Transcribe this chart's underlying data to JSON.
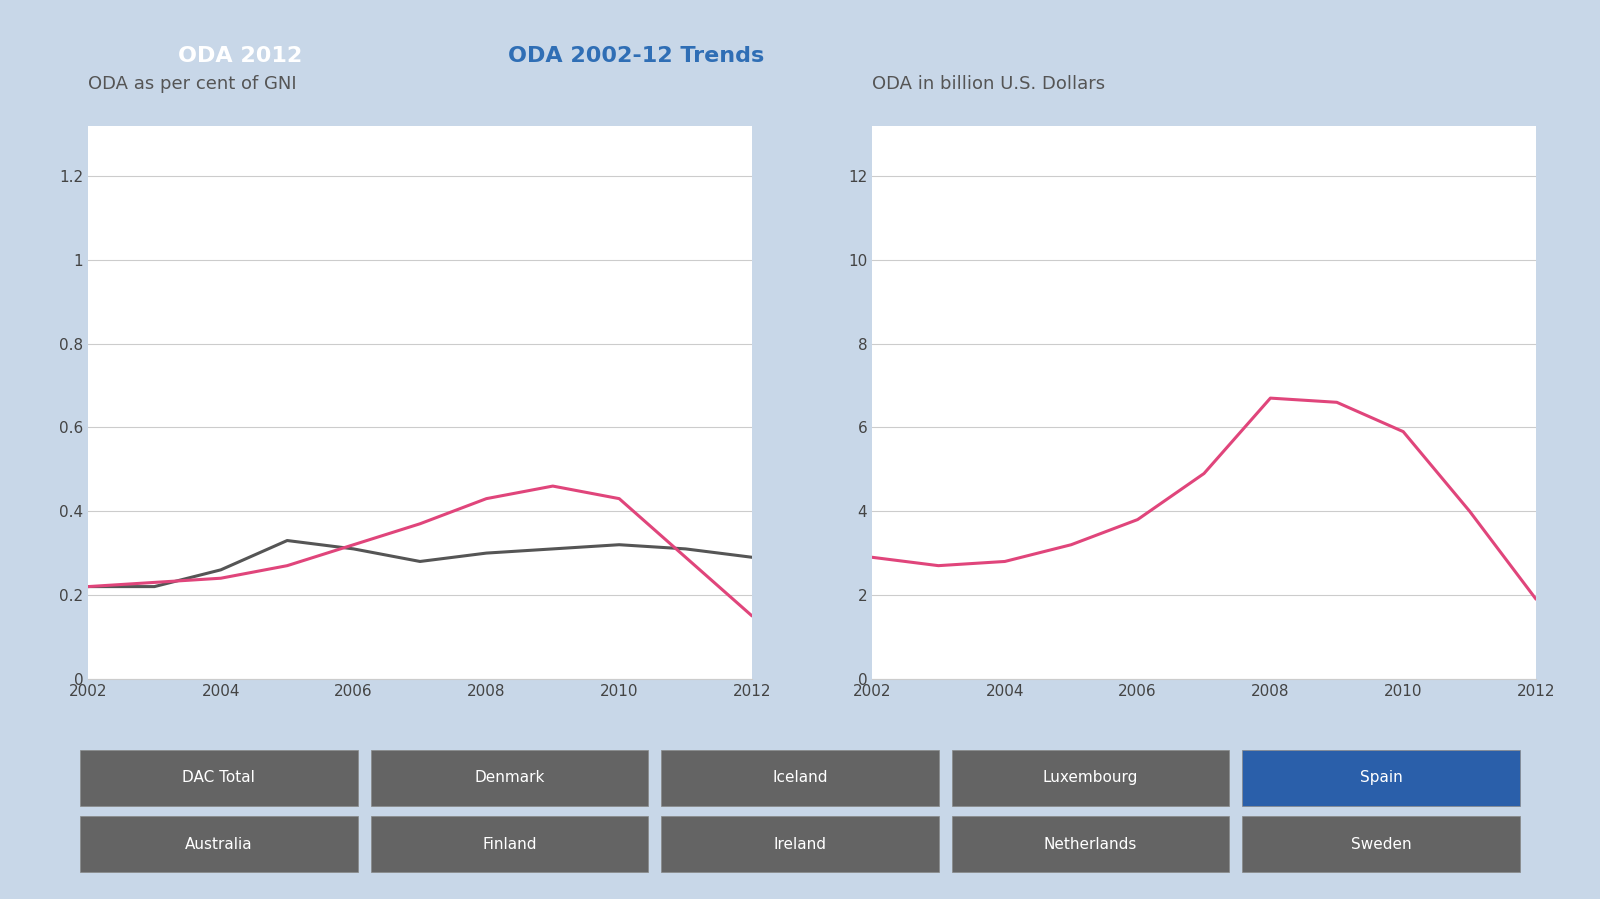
{
  "tab1_label": "ODA 2012",
  "tab2_label": "ODA 2002-12 Trends",
  "tab1_color": "#3a90d0",
  "tab2_color": "#f5f8fc",
  "tab1_text_color": "#ffffff",
  "tab2_text_color": "#2f6eb5",
  "background_color": "#c8d7e8",
  "chart_bg_color": "#f5f8fc",
  "plot_bg_color": "#ffffff",
  "years": [
    2002,
    2003,
    2004,
    2005,
    2006,
    2007,
    2008,
    2009,
    2010,
    2011,
    2012
  ],
  "left_title": "ODA as per cent of GNI",
  "left_ytick_labels": [
    "0",
    "0.2",
    "0.4",
    "0.6",
    "0.8",
    "1",
    "1.2"
  ],
  "left_yticks": [
    0,
    0.2,
    0.4,
    0.6,
    0.8,
    1.0,
    1.2
  ],
  "left_ylim": [
    0,
    1.32
  ],
  "left_spain": [
    0.22,
    0.23,
    0.24,
    0.27,
    0.32,
    0.37,
    0.43,
    0.46,
    0.43,
    0.29,
    0.15
  ],
  "left_dac": [
    0.22,
    0.22,
    0.26,
    0.33,
    0.31,
    0.28,
    0.3,
    0.31,
    0.32,
    0.31,
    0.29
  ],
  "right_title": "ODA in billion U.S. Dollars",
  "right_ytick_labels": [
    "0",
    "2",
    "4",
    "6",
    "8",
    "10",
    "12"
  ],
  "right_yticks": [
    0,
    2,
    4,
    6,
    8,
    10,
    12
  ],
  "right_ylim": [
    0,
    13.2
  ],
  "right_spain": [
    2.9,
    2.7,
    2.8,
    3.2,
    3.8,
    4.9,
    6.7,
    6.6,
    5.9,
    4.0,
    1.9
  ],
  "spain_color": "#e0457b",
  "dac_color": "#555555",
  "line_width": 2.2,
  "grid_color": "#cccccc",
  "xtick_years": [
    2002,
    2004,
    2006,
    2008,
    2010,
    2012
  ],
  "legend_items": [
    "DAC Total",
    "Denmark",
    "Iceland",
    "Luxembourg",
    "Spain",
    "Australia",
    "Finland",
    "Ireland",
    "Netherlands",
    "Sweden"
  ],
  "legend_highlight": "Spain",
  "legend_button_color": "#646464",
  "legend_highlight_color": "#2a5faa",
  "legend_text_color": "#ffffff",
  "legend_rows": 2,
  "legend_cols": 5,
  "tick_fontsize": 11,
  "title_fontsize": 13,
  "tab_fontsize": 16
}
